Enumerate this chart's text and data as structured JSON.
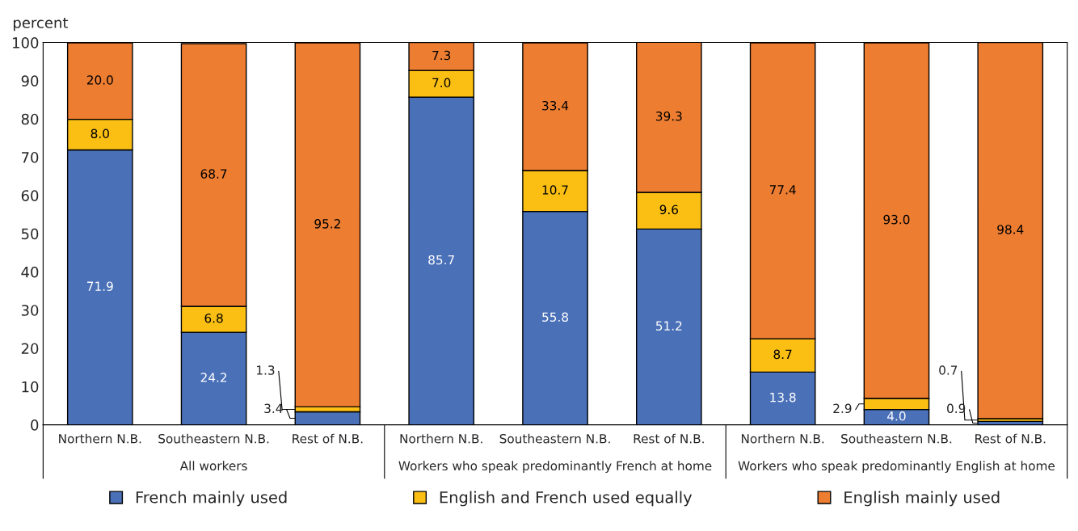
{
  "chart_data": {
    "type": "bar",
    "stacked": true,
    "ylabel": "percent",
    "categories": [
      "Northern N.B.",
      "Southeastern N.B.",
      "Rest of N.B.",
      "Northern N.B.",
      "Southeastern N.B.",
      "Rest of N.B.",
      "Northern N.B.",
      "Southeastern N.B.",
      "Rest of N.B."
    ],
    "series": [
      {
        "name": "French mainly used",
        "color": "#4a70b8",
        "values": [
          71.9,
          24.2,
          3.4,
          85.7,
          55.8,
          51.2,
          13.8,
          4.0,
          0.9
        ],
        "value_labels": [
          "71.9",
          "24.2",
          "3.4",
          "85.7",
          "55.8",
          "51.2",
          "13.8",
          "4.0",
          "0.9"
        ]
      },
      {
        "name": "English and French used equally",
        "color": "#fbbf14",
        "values": [
          8.0,
          6.8,
          1.3,
          7.0,
          10.7,
          9.6,
          8.7,
          2.9,
          0.7
        ],
        "value_labels": [
          "8.0",
          "6.8",
          "1.3",
          "7.0",
          "10.7",
          "9.6",
          "8.7",
          "2.9",
          "0.7"
        ]
      },
      {
        "name": "English mainly used",
        "color": "#ed7d31",
        "values": [
          20.0,
          68.7,
          95.2,
          7.3,
          33.4,
          39.3,
          77.4,
          93.0,
          98.4
        ],
        "value_labels": [
          "20.0",
          "68.7",
          "95.2",
          "7.3",
          "33.4",
          "39.3",
          "77.4",
          "93.0",
          "98.4"
        ]
      }
    ],
    "annotations": [
      "All workers",
      "Workers who speak predominantly French at home",
      "Workers who speak predominantly English at home"
    ],
    "ylim": [
      0,
      100
    ],
    "yticks": [
      0,
      10,
      20,
      30,
      40,
      50,
      60,
      70,
      80,
      90,
      100
    ],
    "grid": false,
    "legend": "bottom"
  }
}
